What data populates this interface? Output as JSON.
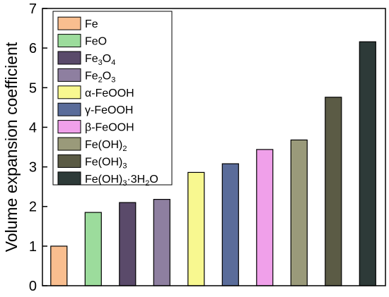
{
  "chart_data": {
    "type": "bar",
    "categories": [
      "Fe",
      "FeO",
      "Fe3O4",
      "Fe2O3",
      "α-FeOOH",
      "γ-FeOOH",
      "β-FeOOH",
      "Fe(OH)2",
      "Fe(OH)3",
      "Fe(OH)3·3H2O"
    ],
    "values": [
      1.0,
      1.85,
      2.1,
      2.18,
      2.86,
      3.08,
      3.44,
      3.68,
      4.76,
      6.16
    ],
    "colors": [
      "#f9be8f",
      "#9cdc9c",
      "#5a4a6a",
      "#8e7fa0",
      "#f8f890",
      "#5a6c9a",
      "#f0a0ea",
      "#9a9a7a",
      "#5b5b45",
      "#2d3a38"
    ],
    "legend": {
      "placement": "top-left",
      "entries": [
        {
          "base": "Fe",
          "sub": "",
          "tail": "",
          "sub2": "",
          "tail2": ""
        },
        {
          "base": "FeO",
          "sub": "",
          "tail": "",
          "sub2": "",
          "tail2": ""
        },
        {
          "base": "Fe",
          "sub": "3",
          "tail": "O",
          "sub2": "4",
          "tail2": ""
        },
        {
          "base": "Fe",
          "sub": "2",
          "tail": "O",
          "sub2": "3",
          "tail2": ""
        },
        {
          "base": "α-FeOOH",
          "sub": "",
          "tail": "",
          "sub2": "",
          "tail2": ""
        },
        {
          "base": "γ-FeOOH",
          "sub": "",
          "tail": "",
          "sub2": "",
          "tail2": ""
        },
        {
          "base": "β-FeOOH",
          "sub": "",
          "tail": "",
          "sub2": "",
          "tail2": ""
        },
        {
          "base": "Fe(OH)",
          "sub": "2",
          "tail": "",
          "sub2": "",
          "tail2": ""
        },
        {
          "base": "Fe(OH)",
          "sub": "3",
          "tail": "",
          "sub2": "",
          "tail2": ""
        },
        {
          "base": "Fe(OH)",
          "sub": "3",
          "tail": "·3H",
          "sub2": "2",
          "tail2": "O"
        }
      ]
    },
    "title": "",
    "xlabel": "",
    "ylabel": "Volume expansion coefficient",
    "ylim": [
      0,
      7
    ],
    "yticks": [
      0,
      1,
      2,
      3,
      4,
      5,
      6,
      7
    ],
    "grid": false
  }
}
